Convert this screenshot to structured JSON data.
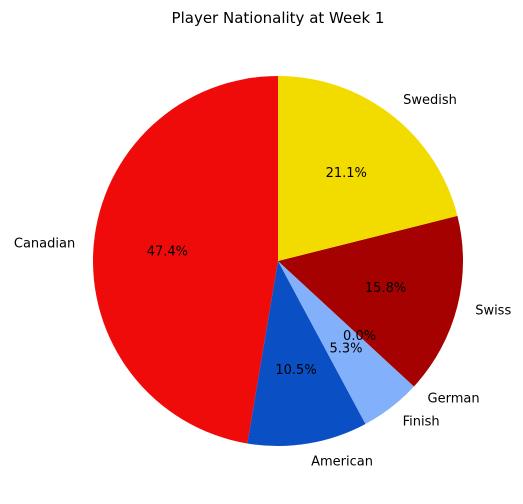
{
  "chart_data": {
    "type": "pie",
    "title": "Player Nationality at Week 1",
    "start_angle_deg": 90,
    "direction": "counterclockwise",
    "slices": [
      {
        "label": "Canadian",
        "value": 47.4,
        "pct_label": "47.4%",
        "color": "#f00b0b"
      },
      {
        "label": "American",
        "value": 10.5,
        "pct_label": "10.5%",
        "color": "#0a4fc4"
      },
      {
        "label": "Finish",
        "value": 5.3,
        "pct_label": "5.3%",
        "color": "#82b0fa"
      },
      {
        "label": "German",
        "value": 0.0,
        "pct_label": "0.0%",
        "color": "#82b0fa"
      },
      {
        "label": "Swiss",
        "value": 15.8,
        "pct_label": "15.8%",
        "color": "#a50101"
      },
      {
        "label": "Swedish",
        "value": 21.1,
        "pct_label": "21.1%",
        "color": "#f2dc00"
      }
    ]
  }
}
